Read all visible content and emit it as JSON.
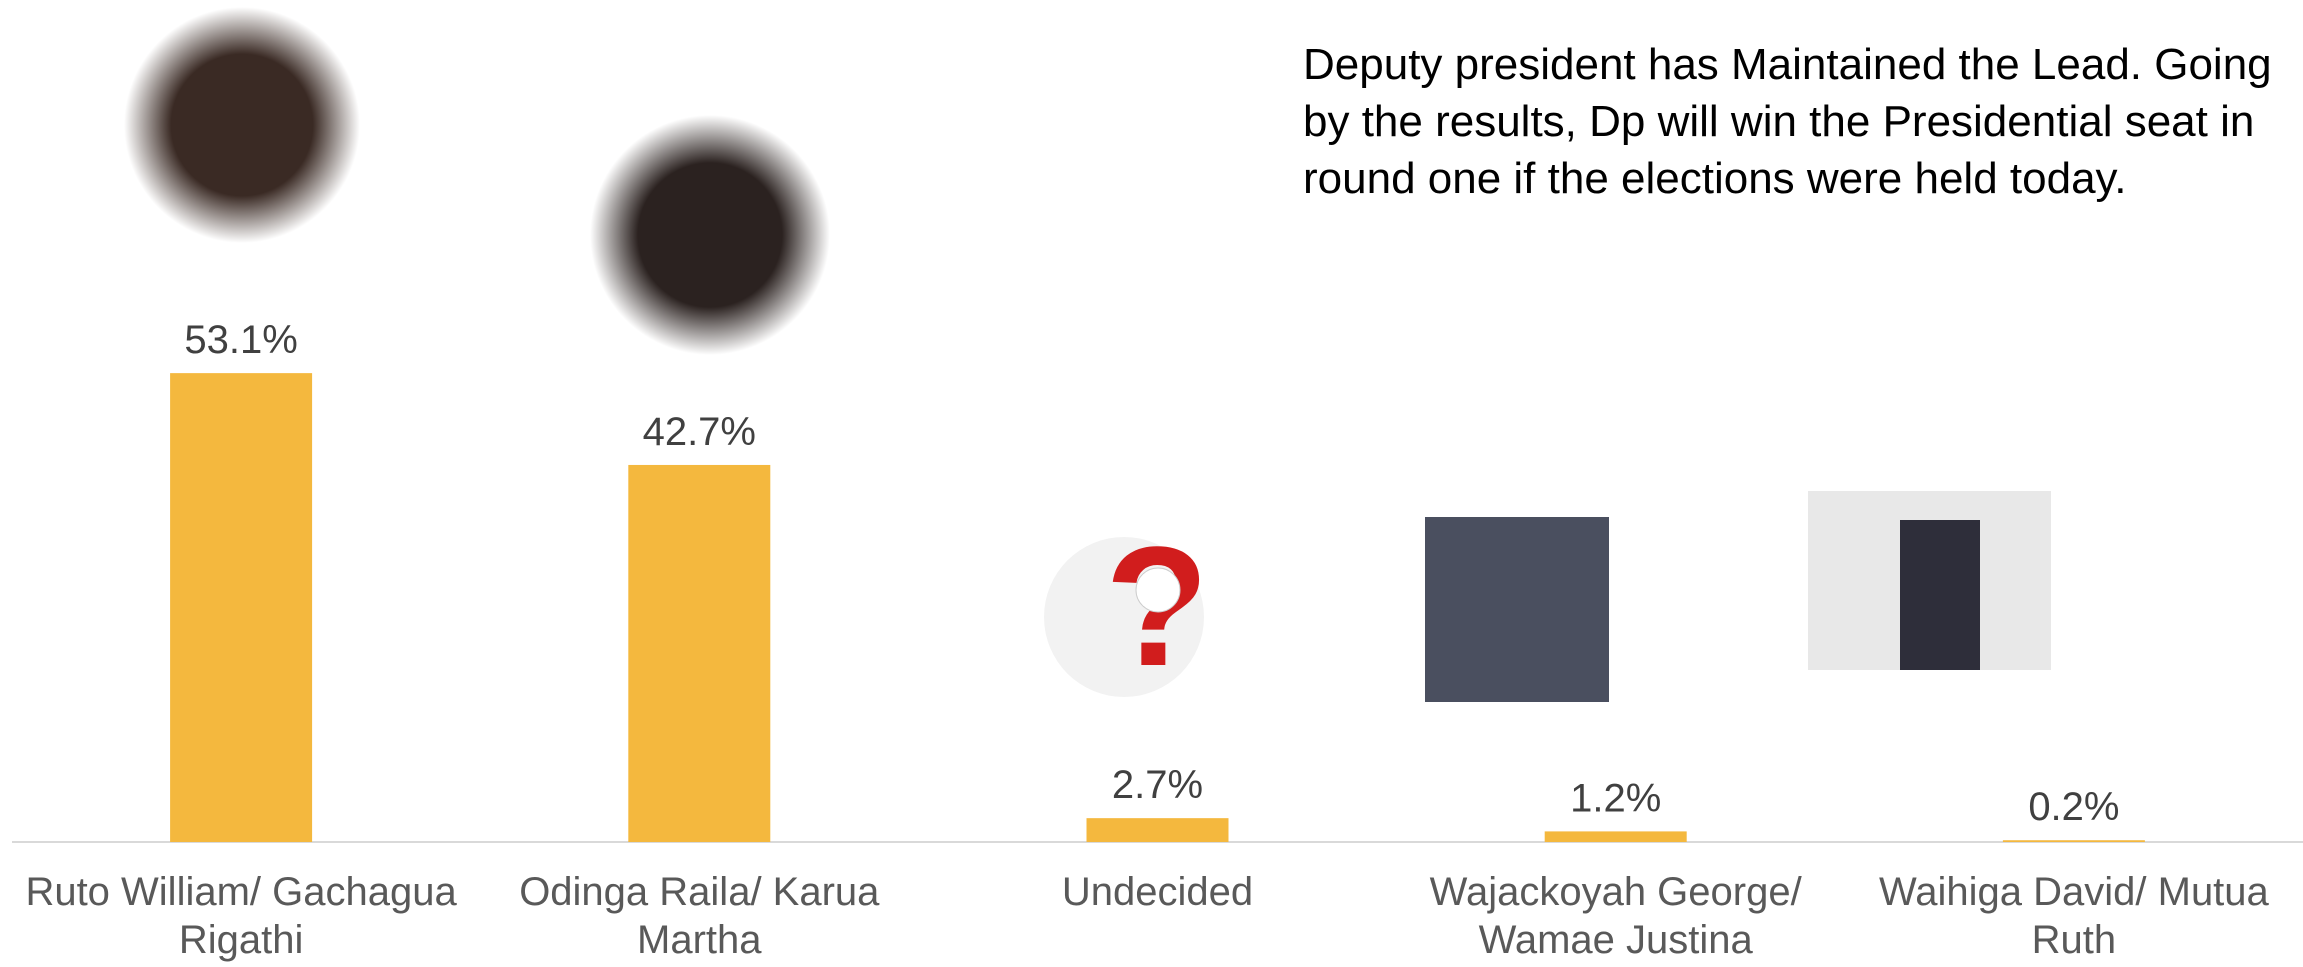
{
  "chart_data": {
    "type": "bar",
    "annotation": "Deputy president has Maintained the Lead. Going by the results, Dp will win the Presidential seat in round one if the elections were held today.",
    "categories": [
      "Ruto William/ Gachagua Rigathi",
      "Odinga Raila/ Karua Martha",
      "Undecided",
      "Wajackoyah George/ Wamae Justina",
      "Waihiga David/ Mutua Ruth"
    ],
    "values": [
      53.1,
      42.7,
      2.7,
      1.2,
      0.2
    ],
    "value_labels": [
      "53.1%",
      "42.7%",
      "2.7%",
      "1.2%",
      "0.2%"
    ],
    "color": "#f4b83e"
  }
}
